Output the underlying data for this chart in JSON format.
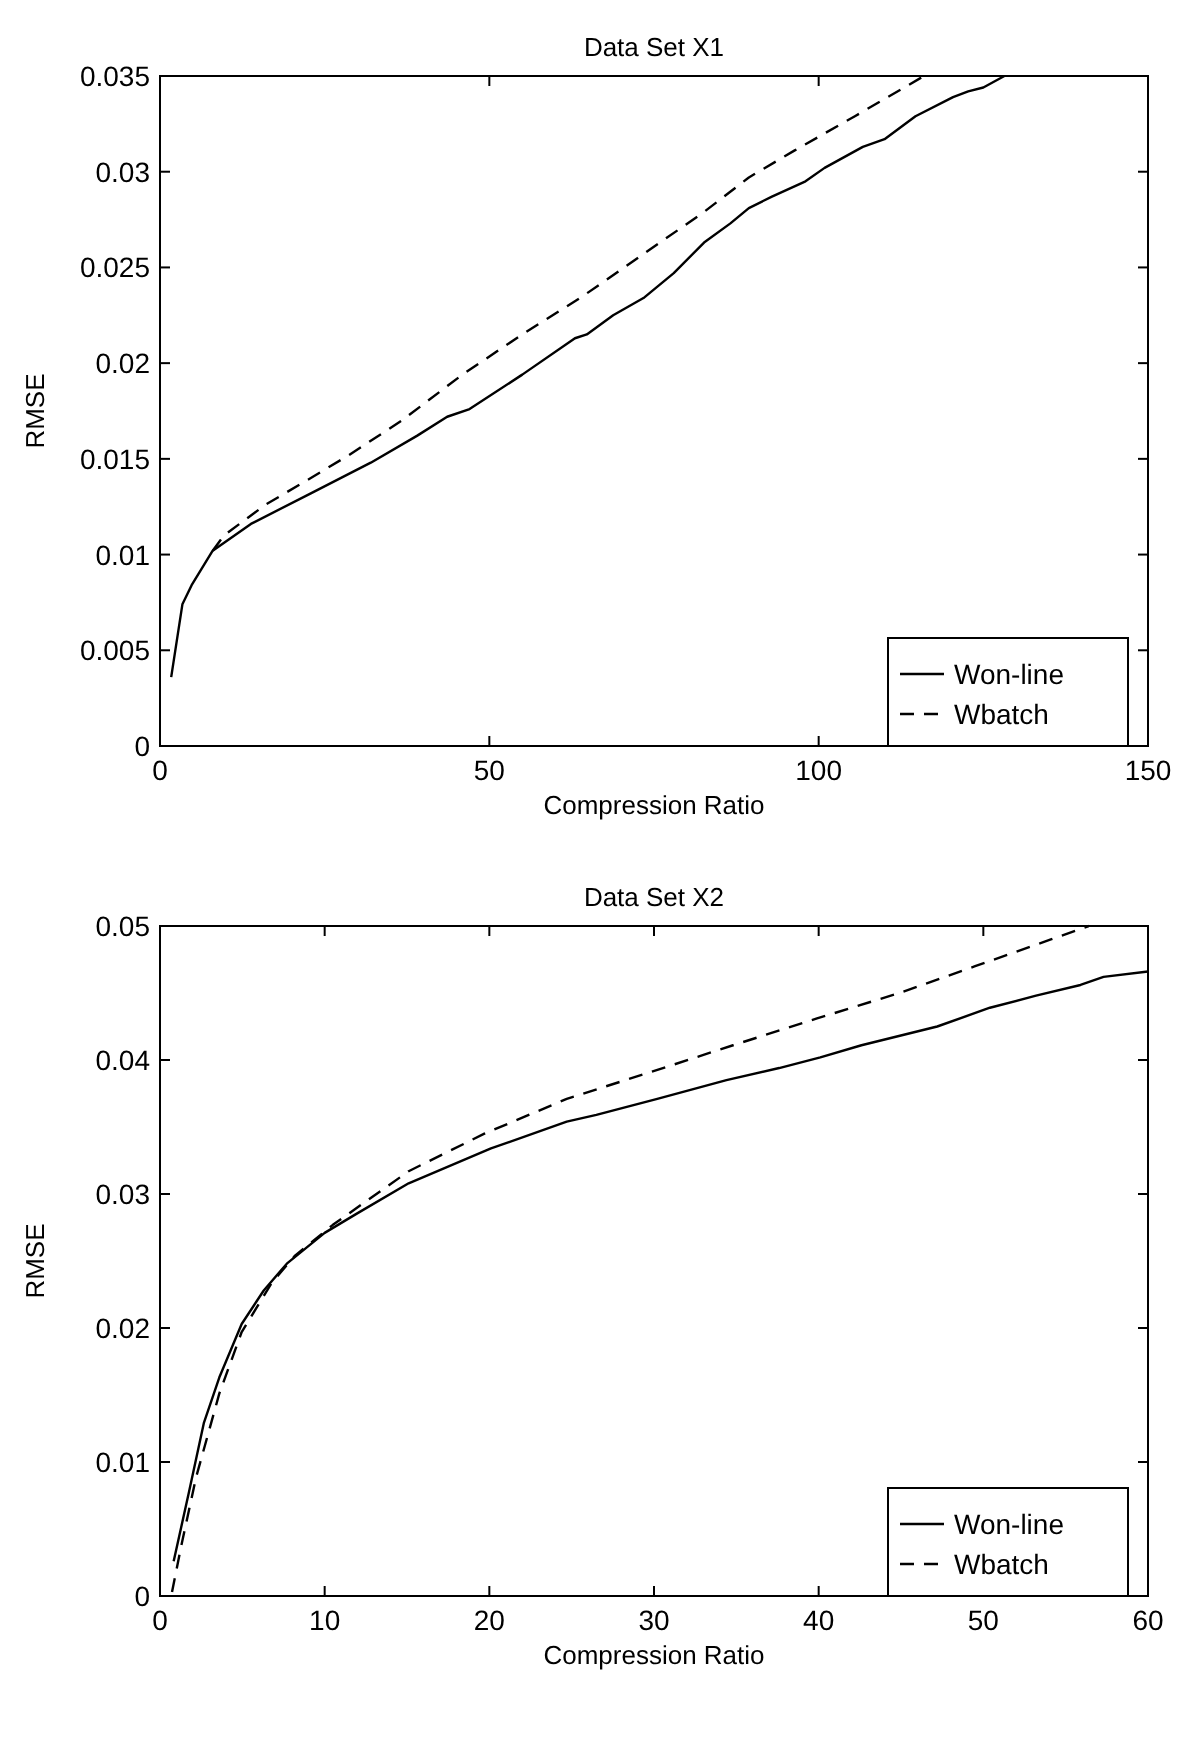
{
  "chart_data": [
    {
      "type": "line",
      "title": "Data Set X1",
      "xlabel": "Compression Ratio",
      "ylabel": "RMSE",
      "xlim": [
        0,
        150
      ],
      "xticks": [
        0,
        50,
        100,
        150
      ],
      "ylim": [
        0,
        0.035
      ],
      "yticks": [
        0,
        0.005,
        0.01,
        0.015,
        0.02,
        0.025,
        0.03,
        0.035
      ],
      "grid": false,
      "legend": "bottom right",
      "marker": "none",
      "series": [
        {
          "name": "Won-line",
          "color": "#000000",
          "line_style": "solid",
          "x": [
            1.7,
            3.4,
            4.8,
            8,
            13.8,
            22.9,
            32,
            39,
            43.6,
            47,
            55,
            63,
            64.8,
            68.8,
            73.4,
            78,
            82.6,
            86.6,
            89.4,
            92.9,
            98,
            100.9,
            106.7,
            110,
            114.7,
            120.4,
            122.7,
            125,
            128.2
          ],
          "values": [
            0.0036,
            0.0074,
            0.0084,
            0.0102,
            0.0116,
            0.0132,
            0.0148,
            0.0162,
            0.0172,
            0.0176,
            0.0194,
            0.0213,
            0.0215,
            0.0225,
            0.0234,
            0.0247,
            0.0263,
            0.0273,
            0.0281,
            0.0287,
            0.0295,
            0.0302,
            0.0313,
            0.0317,
            0.0329,
            0.0339,
            0.0342,
            0.0344,
            0.035
          ]
        },
        {
          "name": "Wbatch",
          "color": "#000000",
          "line_style": "dashed",
          "x": [
            8,
            9.7,
            16,
            22.9,
            28.7,
            36.7,
            45.9,
            55,
            64.2,
            73.4,
            82.6,
            89.4,
            96.3,
            105.5,
            116
          ],
          "values": [
            0.0102,
            0.011,
            0.0126,
            0.014,
            0.0152,
            0.017,
            0.0194,
            0.0215,
            0.0235,
            0.0257,
            0.0279,
            0.0297,
            0.0311,
            0.0329,
            0.035
          ]
        }
      ]
    },
    {
      "type": "line",
      "title": "Data Set X2",
      "xlabel": "Compression Ratio",
      "ylabel": "RMSE",
      "xlim": [
        0,
        60
      ],
      "xticks": [
        0,
        10,
        20,
        30,
        40,
        50,
        60
      ],
      "ylim": [
        0,
        0.05
      ],
      "yticks": [
        0,
        0.01,
        0.02,
        0.03,
        0.04,
        0.05
      ],
      "grid": false,
      "legend": "bottom right",
      "marker": "none",
      "series": [
        {
          "name": "Won-line",
          "color": "#000000",
          "line_style": "solid",
          "x": [
            0.83,
            1.75,
            2.66,
            3.6,
            4.96,
            6.3,
            7.7,
            10,
            11.9,
            15.1,
            20.1,
            24.7,
            26.5,
            30.2,
            34.4,
            37.6,
            40.1,
            42.6,
            47.2,
            50.4,
            53.2,
            55.9,
            57.3,
            60
          ],
          "values": [
            0.0026,
            0.0077,
            0.0129,
            0.0163,
            0.0203,
            0.0228,
            0.0248,
            0.0271,
            0.0285,
            0.0308,
            0.0334,
            0.0354,
            0.0359,
            0.0371,
            0.0385,
            0.0394,
            0.0402,
            0.0411,
            0.0425,
            0.0439,
            0.0448,
            0.0456,
            0.0462,
            0.0466
          ]
        },
        {
          "name": "Wbatch",
          "color": "#000000",
          "line_style": "dashed",
          "x": [
            0.73,
            1.3,
            2.2,
            3.6,
            4.96,
            6.8,
            8.2,
            10.5,
            15.1,
            19.7,
            24.7,
            29.8,
            34.8,
            39.9,
            44.9,
            49.5,
            54.1,
            56.4
          ],
          "values": [
            0.0003,
            0.0038,
            0.0089,
            0.0151,
            0.0197,
            0.0234,
            0.0254,
            0.0277,
            0.0317,
            0.0345,
            0.0371,
            0.0391,
            0.0411,
            0.0431,
            0.045,
            0.047,
            0.049,
            0.05
          ]
        }
      ]
    }
  ]
}
